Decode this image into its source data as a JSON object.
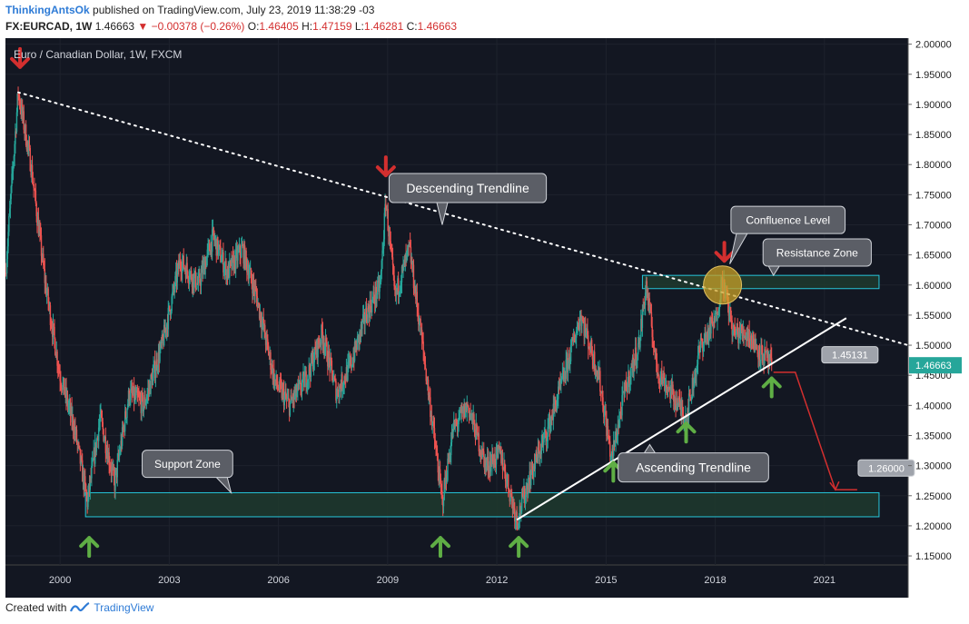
{
  "header": {
    "author": "ThinkingAntsOk",
    "published_text": "published on TradingView.com, July 23, 2019 11:38:29 -03",
    "symbol": "FX:EURCAD, 1W",
    "last": "1.46663",
    "change": "▼ −0.00378 (−0.26%)",
    "o_label": "O:",
    "o_value": "1.46405",
    "h_label": "H:",
    "h_value": "1.47159",
    "l_label": "L:",
    "l_value": "1.46281",
    "c_label": "C:",
    "c_value": "1.46663"
  },
  "footer": {
    "created_with": "Created with",
    "brand": "TradingView"
  },
  "colors": {
    "background": "#131722",
    "up": "#26a69a",
    "down": "#ef5350",
    "zone_fill": "#1f3a2e",
    "zone_border": "#26c6da",
    "callout": "#5b5e66",
    "arrow_red": "#d32f2f",
    "arrow_green": "#5fae45",
    "confluence": "#c9a227",
    "price_label": "#26a69a"
  },
  "chart_data": {
    "type": "candlestick",
    "title": "Euro / Canadian Dollar, 1W, FXCM",
    "x_ticks": [
      "2000",
      "2003",
      "2006",
      "2009",
      "2012",
      "2015",
      "2018",
      "2021"
    ],
    "x_range": [
      1998.5,
      2023.3
    ],
    "y_ticks": [
      "2.00000",
      "1.95000",
      "1.90000",
      "1.85000",
      "1.80000",
      "1.75000",
      "1.70000",
      "1.65000",
      "1.60000",
      "1.55000",
      "1.50000",
      "1.45000",
      "1.40000",
      "1.35000",
      "1.30000",
      "1.25000",
      "1.20000",
      "1.15000"
    ],
    "y_range": [
      1.135,
      2.01
    ],
    "last_price_label": "1.46663",
    "last_price": 1.46663,
    "price_path": [
      [
        1998.5,
        1.62
      ],
      [
        1998.85,
        1.92
      ],
      [
        1999.2,
        1.8
      ],
      [
        1999.6,
        1.6
      ],
      [
        2000.0,
        1.45
      ],
      [
        2000.4,
        1.36
      ],
      [
        2000.75,
        1.24
      ],
      [
        2001.1,
        1.38
      ],
      [
        2001.5,
        1.27
      ],
      [
        2001.9,
        1.42
      ],
      [
        2002.3,
        1.4
      ],
      [
        2002.8,
        1.5
      ],
      [
        2003.3,
        1.64
      ],
      [
        2003.8,
        1.6
      ],
      [
        2004.2,
        1.68
      ],
      [
        2004.6,
        1.62
      ],
      [
        2005.0,
        1.66
      ],
      [
        2005.4,
        1.58
      ],
      [
        2005.9,
        1.44
      ],
      [
        2006.3,
        1.4
      ],
      [
        2006.8,
        1.45
      ],
      [
        2007.2,
        1.52
      ],
      [
        2007.6,
        1.42
      ],
      [
        2008.0,
        1.47
      ],
      [
        2008.4,
        1.55
      ],
      [
        2008.8,
        1.6
      ],
      [
        2008.95,
        1.74
      ],
      [
        2009.2,
        1.58
      ],
      [
        2009.6,
        1.66
      ],
      [
        2010.0,
        1.48
      ],
      [
        2010.5,
        1.24
      ],
      [
        2010.8,
        1.36
      ],
      [
        2011.2,
        1.4
      ],
      [
        2011.7,
        1.3
      ],
      [
        2012.1,
        1.32
      ],
      [
        2012.55,
        1.21
      ],
      [
        2012.9,
        1.28
      ],
      [
        2013.4,
        1.36
      ],
      [
        2013.9,
        1.46
      ],
      [
        2014.3,
        1.55
      ],
      [
        2014.8,
        1.45
      ],
      [
        2015.15,
        1.31
      ],
      [
        2015.5,
        1.42
      ],
      [
        2015.9,
        1.5
      ],
      [
        2016.1,
        1.6
      ],
      [
        2016.4,
        1.46
      ],
      [
        2016.8,
        1.42
      ],
      [
        2017.2,
        1.38
      ],
      [
        2017.6,
        1.5
      ],
      [
        2018.0,
        1.54
      ],
      [
        2018.2,
        1.61
      ],
      [
        2018.5,
        1.52
      ],
      [
        2018.9,
        1.52
      ],
      [
        2019.2,
        1.49
      ],
      [
        2019.55,
        1.46663
      ]
    ],
    "descending_trendline": {
      "from": [
        1998.85,
        1.92
      ],
      "to": [
        2023.3,
        1.5
      ]
    },
    "ascending_trendline": {
      "from": [
        2012.55,
        1.21
      ],
      "to": [
        2021.6,
        1.545
      ]
    },
    "zones": [
      {
        "name": "Support Zone",
        "x0": 2000.7,
        "x1": 2022.5,
        "y0": 1.215,
        "y1": 1.255
      },
      {
        "name": "Resistance Zone",
        "x0": 2016.0,
        "x1": 2022.5,
        "y0": 1.594,
        "y1": 1.616
      }
    ],
    "annotations": [
      {
        "text": "Descending Trendline",
        "x": 2011.2,
        "y": 1.761,
        "tip": [
          2010.5,
          1.7
        ]
      },
      {
        "text": "Confluence Level",
        "x": 2020.0,
        "y": 1.708,
        "tip": [
          2018.4,
          1.635
        ]
      },
      {
        "text": "Resistance Zone",
        "x": 2020.8,
        "y": 1.654,
        "tip": [
          2019.6,
          1.616
        ]
      },
      {
        "text": "Support Zone",
        "x": 2003.5,
        "y": 1.303,
        "tip": [
          2004.7,
          1.255
        ]
      },
      {
        "text": "Ascending Trendline",
        "x": 2017.4,
        "y": 1.297,
        "tip": [
          2016.2,
          1.335
        ]
      }
    ],
    "price_labels": [
      {
        "text": "1.45131",
        "x": 2021.7,
        "y": 1.484
      },
      {
        "text": "1.26000",
        "x": 2022.7,
        "y": 1.296
      }
    ],
    "confluence_circle": {
      "x": 2018.2,
      "y": 1.6
    },
    "projection": [
      [
        2019.6,
        1.455
      ],
      [
        2020.2,
        1.455
      ],
      [
        2021.3,
        1.26
      ],
      [
        2021.9,
        1.26
      ]
    ],
    "red_arrows": [
      [
        1998.9,
        1.962
      ],
      [
        2008.95,
        1.782
      ],
      [
        2018.25,
        1.64
      ]
    ],
    "green_arrows": [
      [
        2000.8,
        1.18
      ],
      [
        2010.45,
        1.18
      ],
      [
        2012.6,
        1.18
      ],
      [
        2015.2,
        1.305
      ],
      [
        2017.2,
        1.37
      ],
      [
        2019.55,
        1.445
      ]
    ]
  }
}
